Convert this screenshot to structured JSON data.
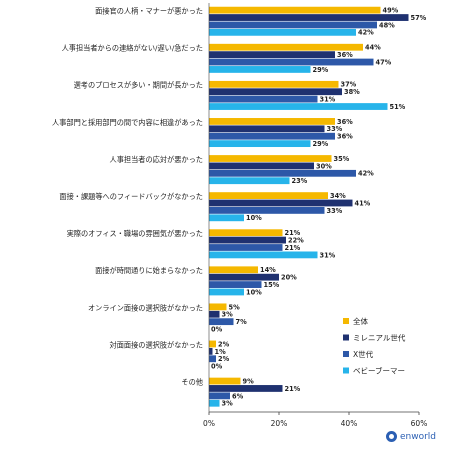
{
  "chart_data": {
    "type": "bar",
    "orientation": "horizontal",
    "categories": [
      "面接官の人柄・マナーが悪かった",
      "人事担当者からの連絡がない/遅い/急だった",
      "選考のプロセスが多い・期間が長かった",
      "人事部門と採用部門の間で内容に相違があった",
      "人事担当者の応対が悪かった",
      "面接・課題等へのフィードバックがなかった",
      "実際のオフィス・職場の雰囲気が悪かった",
      "面接が時間通りに始まらなかった",
      "オンライン面接の選択肢がなかった",
      "対面面接の選択肢がなかった",
      "その他"
    ],
    "series": [
      {
        "name": "全体",
        "color": "#f5b800",
        "values": [
          49,
          44,
          37,
          36,
          35,
          34,
          21,
          14,
          5,
          2,
          9
        ]
      },
      {
        "name": "ミレニアル世代",
        "color": "#1f3170",
        "values": [
          57,
          36,
          38,
          33,
          30,
          41,
          22,
          20,
          3,
          1,
          21
        ]
      },
      {
        "name": "X世代",
        "color": "#2d58a8",
        "values": [
          48,
          47,
          31,
          36,
          42,
          33,
          21,
          15,
          7,
          2,
          6
        ]
      },
      {
        "name": "ベビーブーマー",
        "color": "#27b4ea",
        "values": [
          42,
          29,
          51,
          29,
          23,
          10,
          31,
          10,
          0,
          0,
          3
        ]
      }
    ],
    "value_suffix": "%",
    "xlim": [
      0,
      60
    ],
    "xticks": [
      0,
      20,
      40,
      60
    ],
    "xtick_labels": [
      "0%",
      "20%",
      "40%",
      "60%"
    ],
    "legend_position": "right, lower-middle",
    "grid": false
  },
  "logo": {
    "text": "enworld"
  }
}
